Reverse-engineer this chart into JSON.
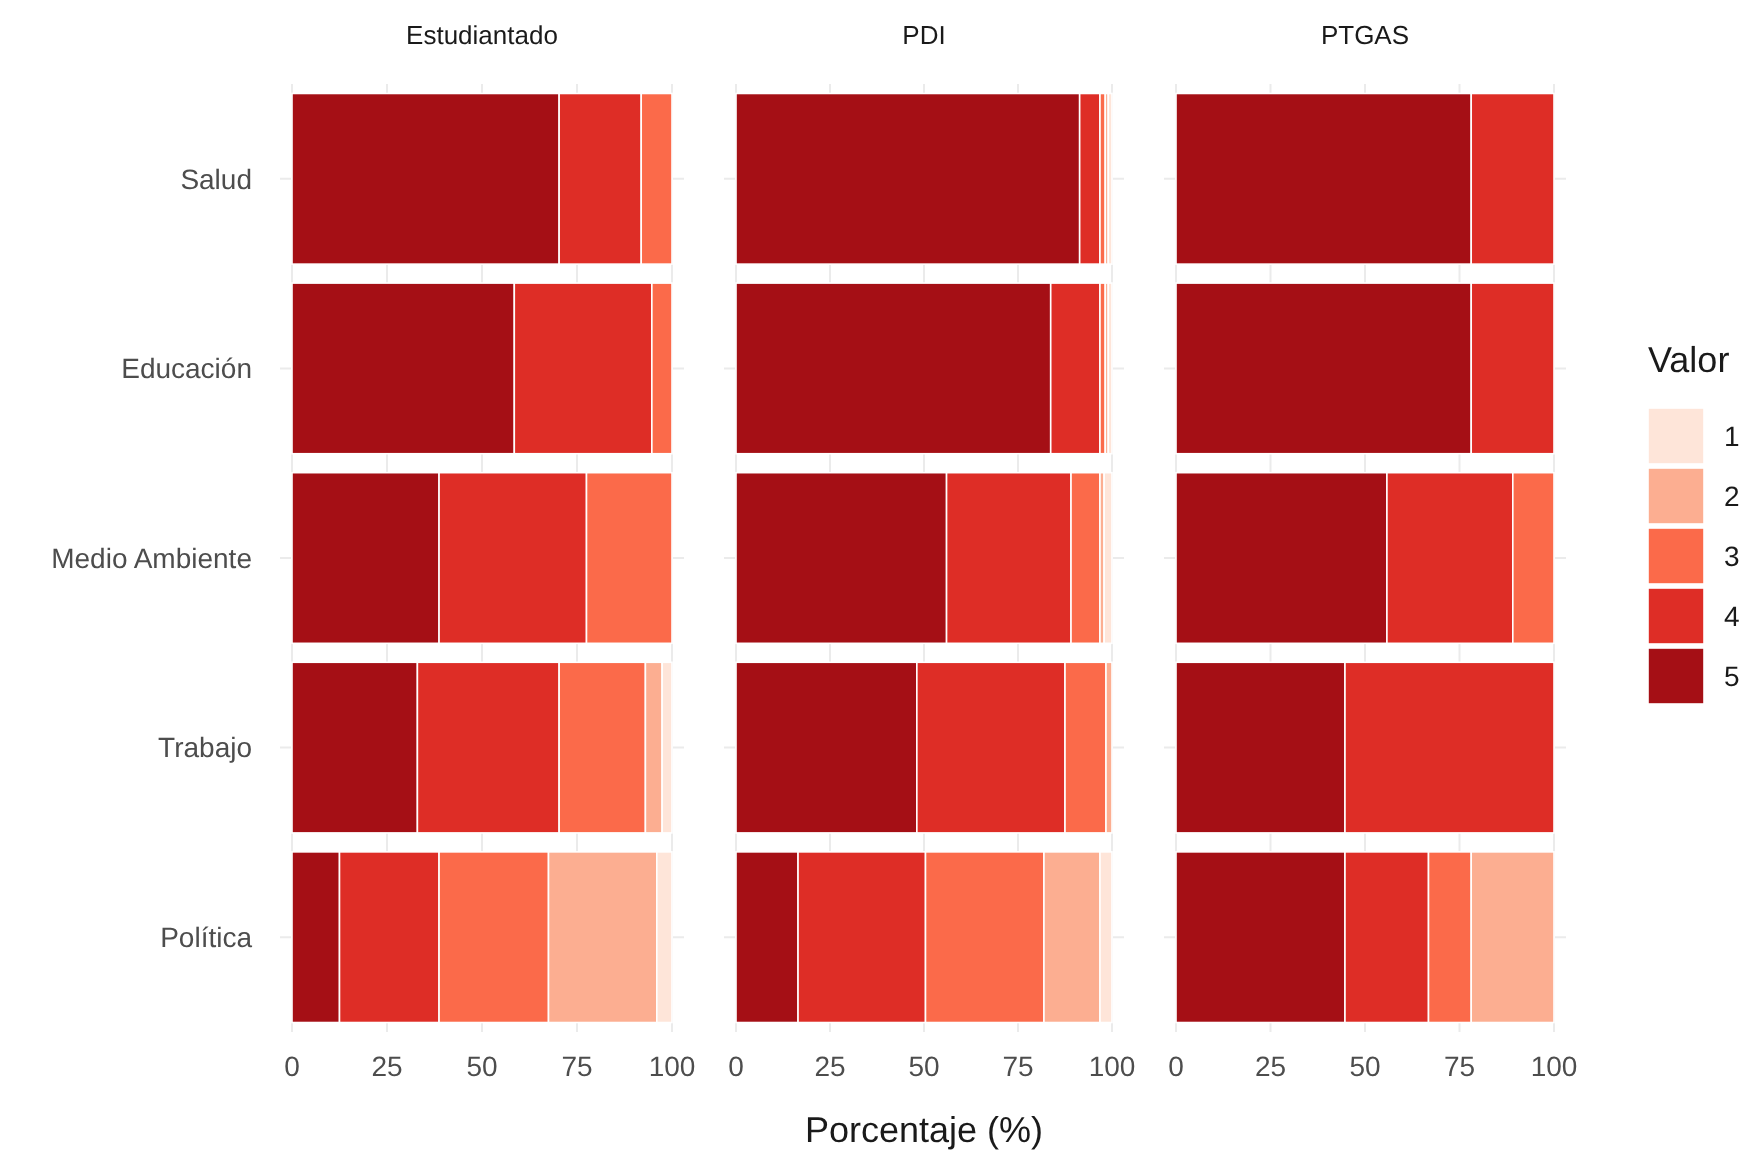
{
  "chart_data": [
    {
      "type": "bar",
      "orientation": "horizontal",
      "stacked": true,
      "title": "Estudiantado",
      "legend_title": "Valor",
      "categories": [
        "Salud",
        "Educación",
        "Medio Ambiente",
        "Trabajo",
        "Política"
      ],
      "xlim": [
        0,
        100
      ],
      "xticks": [
        0,
        25,
        50,
        75,
        100
      ],
      "grid": true,
      "legend": "right",
      "series": [
        {
          "name": "5",
          "color": "#a50f15",
          "values": [
            70.3,
            58.5,
            38.7,
            33,
            12.5
          ]
        },
        {
          "name": "4",
          "color": "#de2d26",
          "values": [
            21.6,
            36.2,
            38.8,
            37.3,
            26.2
          ]
        },
        {
          "name": "3",
          "color": "#fb6a4a",
          "values": [
            8.1,
            5.3,
            22.5,
            22.7,
            28.8
          ]
        },
        {
          "name": "2",
          "color": "#fcae91",
          "values": [
            null,
            null,
            null,
            4.4,
            28.5
          ]
        },
        {
          "name": "1",
          "color": "#fee5d9",
          "values": [
            null,
            null,
            null,
            2.6,
            4
          ]
        }
      ]
    },
    {
      "type": "bar",
      "orientation": "horizontal",
      "stacked": true,
      "title": "PDI",
      "xlabel": "Porcentaje (%)",
      "categories": [
        null,
        null,
        null,
        null,
        null
      ],
      "xlim": [
        0,
        100
      ],
      "xticks": [
        0,
        25,
        50,
        75,
        100
      ],
      "grid": true,
      "legend": false,
      "tick_labels": "x",
      "series": [
        {
          "color": "#a50f15",
          "values": [
            91.4,
            83.7,
            56,
            48.1,
            16.5
          ]
        },
        {
          "color": "#de2d26",
          "values": [
            5.4,
            13.1,
            33.1,
            39.4,
            33.9
          ]
        },
        {
          "color": "#fb6a4a",
          "values": [
            1.4,
            1.4,
            7.7,
            10.9,
            31.5
          ]
        },
        {
          "color": "#fcae91",
          "values": [
            0.8,
            0.8,
            1.1,
            1.6,
            14.9
          ]
        },
        {
          "color": "#fee5d9",
          "values": [
            1,
            1,
            2.1,
            null,
            3.2
          ]
        }
      ]
    },
    {
      "type": "bar",
      "orientation": "horizontal",
      "stacked": true,
      "title": "PTGAS",
      "categories": [
        null,
        null,
        null,
        null,
        null
      ],
      "xlim": [
        0,
        100
      ],
      "xticks": [
        0,
        25,
        50,
        75,
        100
      ],
      "grid": true,
      "legend": false,
      "tick_labels": "x",
      "series": [
        {
          "color": "#a50f15",
          "values": [
            78.1,
            78.1,
            55.8,
            44.7,
            44.7
          ]
        },
        {
          "color": "#de2d26",
          "values": [
            21.9,
            21.9,
            33.3,
            55.3,
            22.1
          ]
        },
        {
          "color": "#fb6a4a",
          "values": [
            null,
            null,
            10.9,
            null,
            11.3
          ]
        },
        {
          "color": "#fcae91",
          "values": [
            null,
            null,
            null,
            null,
            21.9
          ]
        }
      ]
    }
  ]
}
